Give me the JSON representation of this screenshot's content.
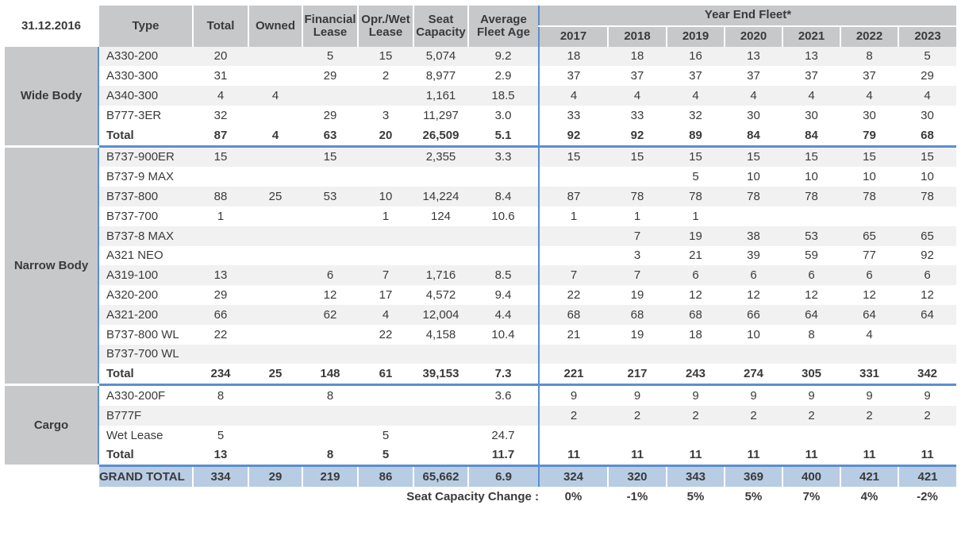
{
  "header": {
    "date": "31.12.2016",
    "type": "Type",
    "total": "Total",
    "owned": "Owned",
    "financial_lease": "Financial Lease",
    "opr_wet_lease": "Opr./Wet Lease",
    "seat_capacity": "Seat Capacity",
    "average_fleet_age": "Average Fleet Age",
    "year_end_fleet": "Year End Fleet*",
    "years": [
      "2017",
      "2018",
      "2019",
      "2020",
      "2021",
      "2022",
      "2023"
    ]
  },
  "groups": [
    {
      "name": "Wide Body",
      "rows": [
        [
          "A330-200",
          "20",
          "",
          "5",
          "15",
          "5,074",
          "9.2",
          "18",
          "18",
          "16",
          "13",
          "13",
          "8",
          "5"
        ],
        [
          "A330-300",
          "31",
          "",
          "29",
          "2",
          "8,977",
          "2.9",
          "37",
          "37",
          "37",
          "37",
          "37",
          "37",
          "29"
        ],
        [
          "A340-300",
          "4",
          "4",
          "",
          "",
          "1,161",
          "18.5",
          "4",
          "4",
          "4",
          "4",
          "4",
          "4",
          "4"
        ],
        [
          "B777-3ER",
          "32",
          "",
          "29",
          "3",
          "11,297",
          "3.0",
          "33",
          "33",
          "32",
          "30",
          "30",
          "30",
          "30"
        ]
      ],
      "total": [
        "Total",
        "87",
        "4",
        "63",
        "20",
        "26,509",
        "5.1",
        "92",
        "92",
        "89",
        "84",
        "84",
        "79",
        "68"
      ]
    },
    {
      "name": "Narrow Body",
      "rows": [
        [
          "B737-900ER",
          "15",
          "",
          "15",
          "",
          "2,355",
          "3.3",
          "15",
          "15",
          "15",
          "15",
          "15",
          "15",
          "15"
        ],
        [
          "B737-9 MAX",
          "",
          "",
          "",
          "",
          "",
          "",
          "",
          "",
          "5",
          "10",
          "10",
          "10",
          "10"
        ],
        [
          "B737-800",
          "88",
          "25",
          "53",
          "10",
          "14,224",
          "8.4",
          "87",
          "78",
          "78",
          "78",
          "78",
          "78",
          "78"
        ],
        [
          "B737-700",
          "1",
          "",
          "",
          "1",
          "124",
          "10.6",
          "1",
          "1",
          "1",
          "",
          "",
          "",
          ""
        ],
        [
          "B737-8 MAX",
          "",
          "",
          "",
          "",
          "",
          "",
          "",
          "7",
          "19",
          "38",
          "53",
          "65",
          "65"
        ],
        [
          "A321 NEO",
          "",
          "",
          "",
          "",
          "",
          "",
          "",
          "3",
          "21",
          "39",
          "59",
          "77",
          "92"
        ],
        [
          "A319-100",
          "13",
          "",
          "6",
          "7",
          "1,716",
          "8.5",
          "7",
          "7",
          "6",
          "6",
          "6",
          "6",
          "6"
        ],
        [
          "A320-200",
          "29",
          "",
          "12",
          "17",
          "4,572",
          "9.4",
          "22",
          "19",
          "12",
          "12",
          "12",
          "12",
          "12"
        ],
        [
          "A321-200",
          "66",
          "",
          "62",
          "4",
          "12,004",
          "4.4",
          "68",
          "68",
          "68",
          "66",
          "64",
          "64",
          "64"
        ],
        [
          "B737-800 WL",
          "22",
          "",
          "",
          "22",
          "4,158",
          "10.4",
          "21",
          "19",
          "18",
          "10",
          "8",
          "4",
          ""
        ],
        [
          "B737-700 WL",
          "",
          "",
          "",
          "",
          "",
          "",
          "",
          "",
          "",
          "",
          "",
          "",
          ""
        ]
      ],
      "total": [
        "Total",
        "234",
        "25",
        "148",
        "61",
        "39,153",
        "7.3",
        "221",
        "217",
        "243",
        "274",
        "305",
        "331",
        "342"
      ]
    },
    {
      "name": "Cargo",
      "rows": [
        [
          "A330-200F",
          "8",
          "",
          "8",
          "",
          "",
          "3.6",
          "9",
          "9",
          "9",
          "9",
          "9",
          "9",
          "9"
        ],
        [
          "B777F",
          "",
          "",
          "",
          "",
          "",
          "",
          "2",
          "2",
          "2",
          "2",
          "2",
          "2",
          "2"
        ],
        [
          "Wet Lease",
          "5",
          "",
          "",
          "5",
          "",
          "24.7",
          "",
          "",
          "",
          "",
          "",
          "",
          ""
        ]
      ],
      "total": [
        "Total",
        "13",
        "",
        "8",
        "5",
        "",
        "11.7",
        "11",
        "11",
        "11",
        "11",
        "11",
        "11",
        "11"
      ]
    }
  ],
  "grand_total": {
    "label": "GRAND TOTAL",
    "values": [
      "334",
      "29",
      "219",
      "86",
      "65,662",
      "6.9",
      "324",
      "320",
      "343",
      "369",
      "400",
      "421",
      "421"
    ]
  },
  "seat_capacity_change": {
    "label": "Seat Capacity Change :",
    "values": [
      "0%",
      "-1%",
      "5%",
      "5%",
      "7%",
      "4%",
      "-2%"
    ]
  }
}
